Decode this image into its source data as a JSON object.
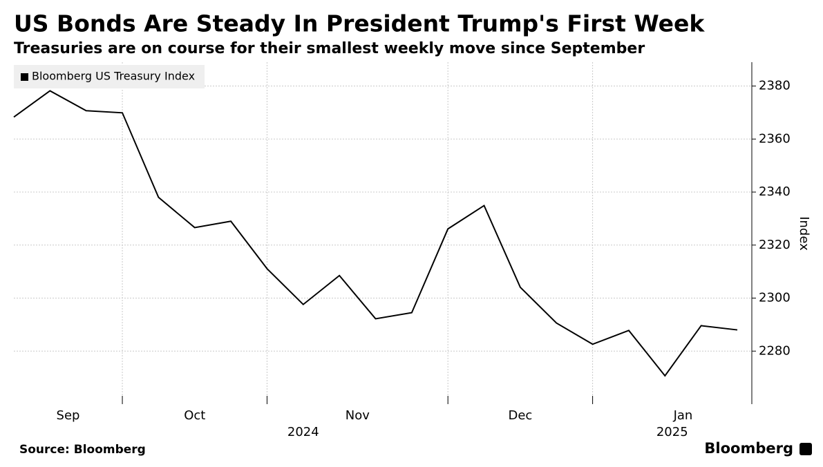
{
  "chart_data": {
    "type": "line",
    "title": "US Bonds Are Steady In President Trump's First Week",
    "subtitle": "Treasuries are on course for their smallest weekly move since September",
    "y_label": "Index",
    "source": "Source: Bloomberg",
    "brand": "Bloomberg",
    "x": [
      0,
      1,
      2,
      3,
      4,
      5,
      6,
      7,
      8,
      9,
      10,
      11,
      12,
      13,
      14,
      15,
      16,
      17,
      18,
      19,
      20
    ],
    "xlim": [
      0,
      20
    ],
    "xticks": [
      {
        "value": 1.5,
        "label": "Sep"
      },
      {
        "value": 5,
        "label": "Oct"
      },
      {
        "value": 9.5,
        "label": "Nov"
      },
      {
        "value": 14,
        "label": "Dec"
      },
      {
        "value": 18.5,
        "label": "Jan"
      }
    ],
    "year_labels": [
      {
        "value": 8,
        "label": "2024"
      },
      {
        "value": 18.2,
        "label": "2025"
      }
    ],
    "xgrid": [
      3,
      7,
      12,
      16
    ],
    "ylim": [
      2260,
      2389
    ],
    "yticks": [
      2280,
      2300,
      2320,
      2340,
      2360,
      2380
    ],
    "grid": true,
    "legend": "top-left",
    "series": [
      {
        "name": "Bloomberg US Treasury Index",
        "color": "#000000",
        "values": [
          2368.3,
          2378.2,
          2370.7,
          2369.9,
          2338.0,
          2326.6,
          2329.0,
          2311.1,
          2297.6,
          2308.5,
          2292.2,
          2294.5,
          2326.1,
          2334.9,
          2304.1,
          2290.6,
          2282.6,
          2287.8,
          2270.7,
          2289.6,
          2288.0
        ]
      }
    ]
  }
}
